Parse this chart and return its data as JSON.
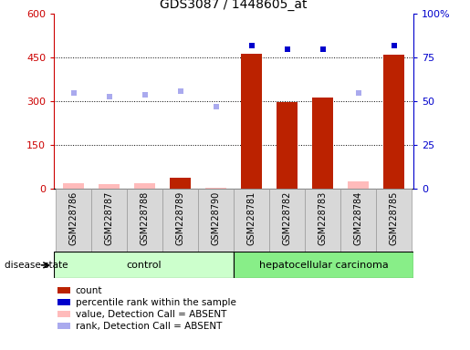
{
  "title": "GDS3087 / 1448605_at",
  "samples": [
    "GSM228786",
    "GSM228787",
    "GSM228788",
    "GSM228789",
    "GSM228790",
    "GSM228781",
    "GSM228782",
    "GSM228783",
    "GSM228784",
    "GSM228785"
  ],
  "groups": [
    "control",
    "control",
    "control",
    "control",
    "control",
    "hepatocellular carcinoma",
    "hepatocellular carcinoma",
    "hepatocellular carcinoma",
    "hepatocellular carcinoma",
    "hepatocellular carcinoma"
  ],
  "bar_values": [
    20,
    18,
    20,
    40,
    5,
    465,
    298,
    313,
    25,
    462
  ],
  "bar_absent": [
    true,
    true,
    true,
    false,
    true,
    false,
    false,
    false,
    true,
    false
  ],
  "blue_values_pct": [
    55,
    53,
    54,
    56,
    47,
    82,
    80,
    80,
    55,
    82
  ],
  "blue_absent": [
    true,
    true,
    true,
    true,
    true,
    false,
    false,
    false,
    true,
    false
  ],
  "ylim_left": [
    0,
    600
  ],
  "ylim_right": [
    0,
    100
  ],
  "yticks_left": [
    0,
    150,
    300,
    450,
    600
  ],
  "yticks_right": [
    0,
    25,
    50,
    75,
    100
  ],
  "control_color": "#ccffcc",
  "cancer_color": "#88ee88",
  "bar_color_present": "#bb2200",
  "bar_color_absent": "#ffbbbb",
  "dot_color_present": "#0000cc",
  "dot_color_absent": "#aaaaee",
  "legend_items": [
    {
      "color": "#bb2200",
      "label": "count"
    },
    {
      "color": "#0000cc",
      "label": "percentile rank within the sample"
    },
    {
      "color": "#ffbbbb",
      "label": "value, Detection Call = ABSENT"
    },
    {
      "color": "#aaaaee",
      "label": "rank, Detection Call = ABSENT"
    }
  ],
  "axis_color_left": "#cc0000",
  "axis_color_right": "#0000cc",
  "ytick_right_labels": [
    "0",
    "25",
    "50",
    "75",
    "100%"
  ]
}
